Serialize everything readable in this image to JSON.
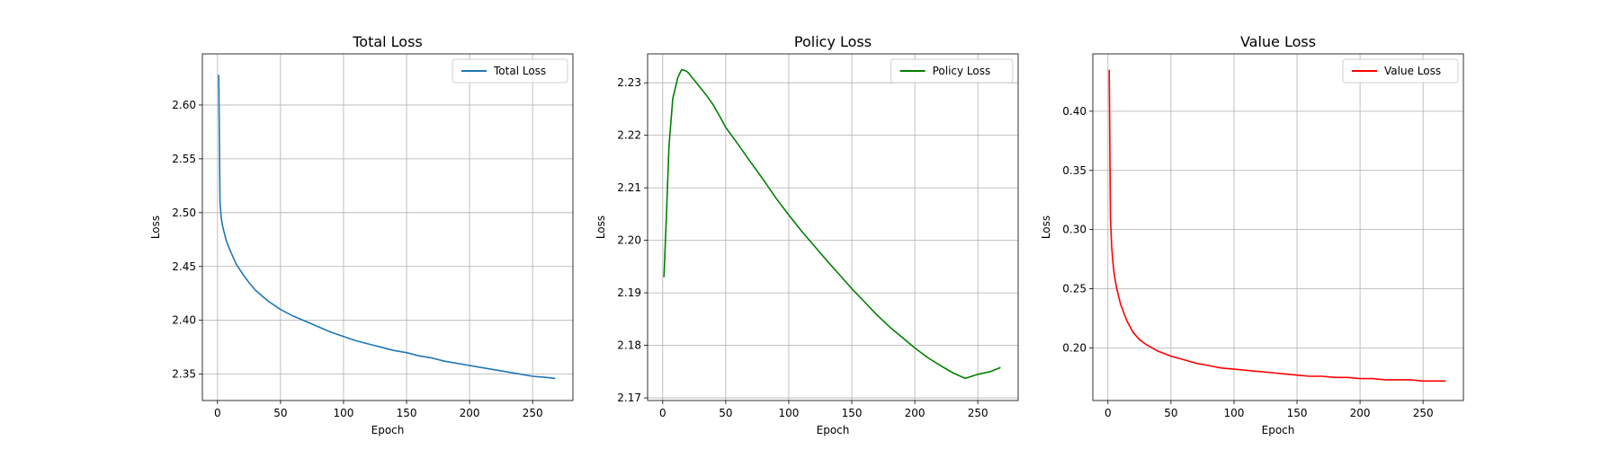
{
  "chart_data": [
    {
      "type": "line",
      "title": "Total Loss",
      "xlabel": "Epoch",
      "ylabel": "Loss",
      "xlim": [
        -12,
        282
      ],
      "ylim": [
        2.3255,
        2.6475
      ],
      "xticks": [
        0,
        50,
        100,
        150,
        200,
        250
      ],
      "yticks": [
        2.35,
        2.4,
        2.45,
        2.5,
        2.55,
        2.6
      ],
      "grid": true,
      "legend_position": "top-right",
      "series": [
        {
          "name": "Total Loss",
          "color": "#1f77b4",
          "x": [
            1,
            2,
            3,
            4,
            5,
            7,
            10,
            15,
            20,
            25,
            30,
            40,
            50,
            60,
            70,
            80,
            90,
            100,
            110,
            120,
            130,
            140,
            150,
            160,
            170,
            180,
            190,
            200,
            210,
            220,
            230,
            240,
            250,
            260,
            268
          ],
          "y": [
            2.628,
            2.51,
            2.495,
            2.488,
            2.483,
            2.474,
            2.465,
            2.452,
            2.443,
            2.435,
            2.428,
            2.418,
            2.41,
            2.404,
            2.399,
            2.394,
            2.389,
            2.385,
            2.381,
            2.378,
            2.375,
            2.372,
            2.37,
            2.367,
            2.365,
            2.362,
            2.36,
            2.358,
            2.356,
            2.354,
            2.352,
            2.35,
            2.348,
            2.347,
            2.346
          ]
        }
      ]
    },
    {
      "type": "line",
      "title": "Policy Loss",
      "xlabel": "Epoch",
      "ylabel": "Loss",
      "xlim": [
        -12,
        282
      ],
      "ylim": [
        2.1695,
        2.2355
      ],
      "xticks": [
        0,
        50,
        100,
        150,
        200,
        250
      ],
      "yticks": [
        2.17,
        2.18,
        2.19,
        2.2,
        2.21,
        2.22,
        2.23
      ],
      "grid": true,
      "legend_position": "top-right",
      "series": [
        {
          "name": "Policy Loss",
          "color": "#008000",
          "x": [
            1,
            3,
            5,
            8,
            12,
            15,
            18,
            20,
            25,
            30,
            35,
            40,
            45,
            50,
            60,
            70,
            80,
            90,
            100,
            110,
            120,
            130,
            140,
            150,
            160,
            170,
            180,
            190,
            200,
            210,
            220,
            230,
            240,
            250,
            260,
            268
          ],
          "y": [
            2.193,
            2.205,
            2.218,
            2.227,
            2.231,
            2.2325,
            2.2323,
            2.232,
            2.2305,
            2.229,
            2.2275,
            2.2258,
            2.2237,
            2.2215,
            2.2182,
            2.2148,
            2.2115,
            2.208,
            2.2048,
            2.2018,
            2.199,
            2.1962,
            2.1935,
            2.1908,
            2.1883,
            2.1858,
            2.1835,
            2.1815,
            2.1795,
            2.1777,
            2.1762,
            2.1748,
            2.1737,
            2.1745,
            2.175,
            2.1758
          ]
        }
      ]
    },
    {
      "type": "line",
      "title": "Value Loss",
      "xlabel": "Epoch",
      "ylabel": "Loss",
      "xlim": [
        -12,
        282
      ],
      "ylim": [
        0.1555,
        0.4485
      ],
      "xticks": [
        0,
        50,
        100,
        150,
        200,
        250
      ],
      "yticks": [
        0.2,
        0.25,
        0.3,
        0.35,
        0.4
      ],
      "grid": true,
      "legend_position": "top-right",
      "series": [
        {
          "name": "Value Loss",
          "color": "#ff0000",
          "x": [
            1,
            2,
            3,
            4,
            5,
            7,
            10,
            15,
            20,
            25,
            30,
            40,
            50,
            60,
            70,
            80,
            90,
            100,
            110,
            120,
            130,
            140,
            150,
            160,
            170,
            180,
            190,
            200,
            210,
            220,
            230,
            240,
            250,
            260,
            268
          ],
          "y": [
            0.435,
            0.31,
            0.285,
            0.272,
            0.262,
            0.25,
            0.237,
            0.223,
            0.213,
            0.207,
            0.203,
            0.197,
            0.193,
            0.19,
            0.187,
            0.185,
            0.183,
            0.182,
            0.181,
            0.18,
            0.179,
            0.178,
            0.177,
            0.176,
            0.176,
            0.175,
            0.175,
            0.174,
            0.174,
            0.173,
            0.173,
            0.173,
            0.172,
            0.172,
            0.172
          ]
        }
      ]
    }
  ]
}
